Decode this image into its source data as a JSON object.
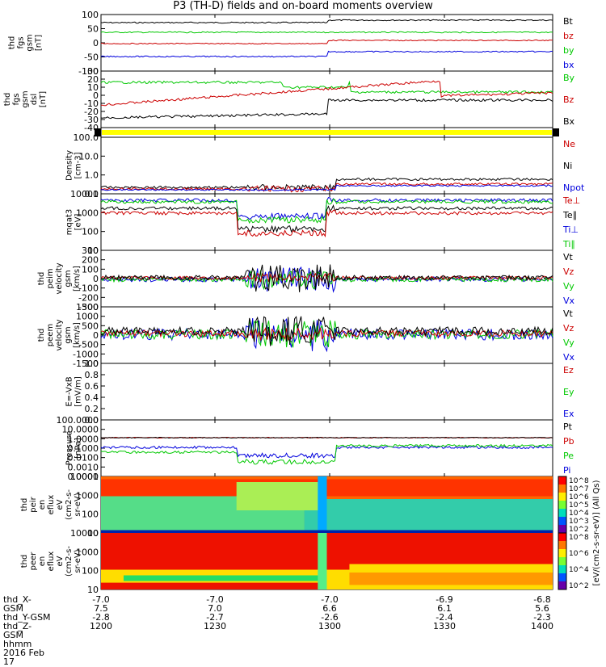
{
  "title": "P3 (TH-D) fields and on-board moments overview",
  "date_label": "2016 Feb 17",
  "colors": {
    "black": "#000000",
    "red": "#cc0000",
    "green": "#00c800",
    "blue": "#0000dd",
    "yellow": "#ffff00"
  },
  "footer": {
    "row_labels": [
      "thd_X-GSM",
      "thd_Y-GSM",
      "thd_Z-GSM",
      "hhmm"
    ],
    "columns": [
      {
        "x": "-7.0",
        "y": "7.5",
        "z": "-2.8",
        "t": "1200"
      },
      {
        "x": "-7.0",
        "y": "7.0",
        "z": "-2.7",
        "t": "1230"
      },
      {
        "x": "-7.0",
        "y": "6.6",
        "z": "-2.6",
        "t": "1300"
      },
      {
        "x": "-6.9",
        "y": "6.1",
        "z": "-2.4",
        "t": "1330"
      },
      {
        "x": "-6.8",
        "y": "5.6",
        "z": "-2.3",
        "t": "1400"
      }
    ]
  },
  "chart_data": {
    "type": "line",
    "time_range": [
      "1200",
      "1400"
    ],
    "panels": [
      {
        "ylabel": [
          "thd",
          "fgs",
          "gsm",
          "[nT]"
        ],
        "ticks": [
          "100",
          "50",
          "0",
          "-50",
          "-100"
        ],
        "legend": [
          {
            "name": "Bt",
            "color": "#000000"
          },
          {
            "name": "bz",
            "color": "#cc0000"
          },
          {
            "name": "by",
            "color": "#00c800"
          },
          {
            "name": "bx",
            "color": "#0000dd"
          }
        ]
      },
      {
        "ylabel": [
          "thd",
          "fgs",
          "gsm",
          "dsl",
          "[nT]"
        ],
        "ticks": [
          "30",
          "20",
          "10",
          "0",
          "-10",
          "-20",
          "-30",
          "-40"
        ],
        "legend": [
          {
            "name": "By",
            "color": "#00c800"
          },
          {
            "name": "Bz",
            "color": "#cc0000"
          },
          {
            "name": "Bx",
            "color": "#000000"
          }
        ]
      },
      {
        "ylabel": [],
        "ticks": [],
        "legend": []
      },
      {
        "ylabel": [
          "Density",
          "[cm-3]"
        ],
        "ticks": [
          "100.0",
          "10.0",
          "1.0",
          "0.1"
        ],
        "legend": [
          {
            "name": "Ne",
            "color": "#cc0000"
          },
          {
            "name": "Ni",
            "color": "#000000"
          },
          {
            "name": "Npot",
            "color": "#0000dd"
          }
        ]
      },
      {
        "ylabel": [
          "mqat3",
          "[eV]"
        ],
        "ticks": [
          "10000",
          "1000",
          "100",
          "10"
        ],
        "legend": [
          {
            "name": "Te⊥",
            "color": "#cc0000"
          },
          {
            "name": "Te∥",
            "color": "#000000"
          },
          {
            "name": "Ti⊥",
            "color": "#0000dd"
          },
          {
            "name": "Ti∥",
            "color": "#00c800"
          }
        ]
      },
      {
        "ylabel": [
          "thd",
          "peim",
          "velocity",
          "gsm",
          "[km/s]"
        ],
        "ticks": [
          "300",
          "200",
          "100",
          "0",
          "-100",
          "-200",
          "-300"
        ],
        "legend": [
          {
            "name": "Vt",
            "color": "#000000"
          },
          {
            "name": "Vz",
            "color": "#cc0000"
          },
          {
            "name": "Vy",
            "color": "#00c800"
          },
          {
            "name": "Vx",
            "color": "#0000dd"
          }
        ]
      },
      {
        "ylabel": [
          "thd",
          "peem",
          "velocity",
          "gsm",
          "[km/s]"
        ],
        "ticks": [
          "1500",
          "1000",
          "500",
          "0",
          "-500",
          "-1000",
          "-1500"
        ],
        "legend": [
          {
            "name": "Vt",
            "color": "#000000"
          },
          {
            "name": "Vz",
            "color": "#cc0000"
          },
          {
            "name": "Vy",
            "color": "#00c800"
          },
          {
            "name": "Vx",
            "color": "#0000dd"
          }
        ]
      },
      {
        "ylabel": [
          "E=-VxB",
          "[mV/m]"
        ],
        "ticks": [
          "1.0",
          "0.8",
          "0.6",
          "0.4",
          "0.2",
          "0.0"
        ],
        "legend": [
          {
            "name": "Ez",
            "color": "#cc0000"
          },
          {
            "name": "Ey",
            "color": "#00c800"
          },
          {
            "name": "Ex",
            "color": "#0000dd"
          }
        ]
      },
      {
        "ylabel": [
          "Pressure",
          "[nPa]"
        ],
        "ticks": [
          "100.0000",
          "10.0000",
          "1.0000",
          "0.1000",
          "0.0100",
          "0.0010",
          "0.0001"
        ],
        "legend": [
          {
            "name": "Pt",
            "color": "#000000"
          },
          {
            "name": "Pb",
            "color": "#cc0000"
          },
          {
            "name": "Pe",
            "color": "#00c800"
          },
          {
            "name": "Pi",
            "color": "#0000dd"
          }
        ]
      },
      {
        "ylabel": [
          "thd",
          "peir",
          "en",
          "eflux",
          "eV",
          "(cm2-s-",
          "sr-eV)"
        ],
        "ticks": [
          "10000",
          "1000",
          "100",
          "10"
        ],
        "legend": [],
        "colorbar": [
          "10^8",
          "10^7",
          "10^6",
          "10^5",
          "10^4",
          "10^3",
          "10^2"
        ]
      },
      {
        "ylabel": [
          "thd",
          "peer",
          "en",
          "eflux",
          "eV",
          "(cm2-s-",
          "sr-eV)"
        ],
        "ticks": [
          "10000",
          "1000",
          "100",
          "10"
        ],
        "legend": [],
        "colorbar": [
          "10^8",
          "10^6",
          "10^4",
          "10^2"
        ]
      }
    ],
    "colorbar_title": "[eV/(cm2-s-sr-eV)] (All Qs)"
  }
}
